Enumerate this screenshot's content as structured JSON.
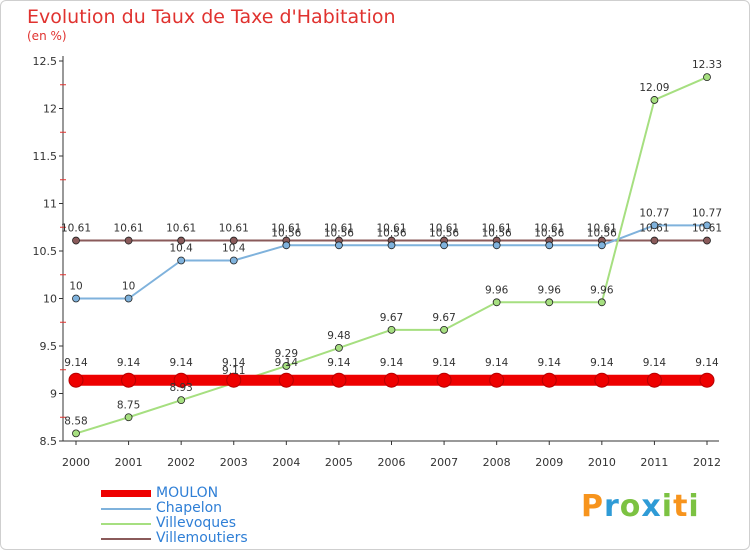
{
  "header": {
    "title": "Evolution du Taux de Taxe d'Habitation",
    "subtitle": "(en %)"
  },
  "logo": {
    "text": "Proxiti",
    "letters": [
      "P",
      "r",
      "o",
      "x",
      "i",
      "t",
      "i"
    ],
    "colors": [
      "#f7941d",
      "#2f9bd6",
      "#7cc242",
      "#2f9bd6",
      "#7cc242",
      "#f7941d",
      "#7cc242"
    ]
  },
  "chart_data": {
    "type": "line",
    "title": "Evolution du Taux de Taxe d'Habitation",
    "subtitle": "(en %)",
    "x": [
      "2000",
      "2001",
      "2002",
      "2003",
      "2004",
      "2005",
      "2006",
      "2007",
      "2008",
      "2009",
      "2010",
      "2011",
      "2012"
    ],
    "yticks": [
      "8.5",
      "9",
      "9.5",
      "10",
      "10.5",
      "11",
      "11.5",
      "12",
      "12.5"
    ],
    "ylim": [
      8.5,
      12.5
    ],
    "grid": false,
    "legend_placement": "bottom-left",
    "series": [
      {
        "name": "MOULON",
        "color": "#ee0000",
        "values": [
          9.14,
          9.14,
          9.14,
          9.14,
          9.14,
          9.14,
          9.14,
          9.14,
          9.14,
          9.14,
          9.14,
          9.14,
          9.14
        ],
        "labels": [
          "9.14",
          "9.14",
          "9.14",
          "9.14",
          "9.14",
          "9.14",
          "9.14",
          "9.14",
          "9.14",
          "9.14",
          "9.14",
          "9.14",
          "9.14"
        ]
      },
      {
        "name": "Chapelon",
        "color": "#7fb2dc",
        "values": [
          10,
          10,
          10.4,
          10.4,
          10.56,
          10.56,
          10.56,
          10.56,
          10.56,
          10.56,
          10.56,
          10.77,
          10.77
        ],
        "labels": [
          "10",
          "10",
          "10.4",
          "10.4",
          "10.56",
          "10.56",
          "10.56",
          "10.56",
          "10.56",
          "10.56",
          "10.56",
          "10.77",
          "10.77"
        ]
      },
      {
        "name": "Villevoques",
        "color": "#a6df80",
        "values": [
          8.58,
          8.75,
          8.93,
          9.11,
          9.29,
          9.48,
          9.67,
          9.67,
          9.96,
          9.96,
          9.96,
          12.09,
          12.33
        ],
        "labels": [
          "8.58",
          "8.75",
          "8.93",
          "9.11",
          "9.29",
          "9.48",
          "9.67",
          "9.67",
          "9.96",
          "9.96",
          "9.96",
          "12.09",
          "12.33"
        ]
      },
      {
        "name": "Villemoutiers",
        "color": "#8a5a5a",
        "values": [
          10.61,
          10.61,
          10.61,
          10.61,
          10.61,
          10.61,
          10.61,
          10.61,
          10.61,
          10.61,
          10.61,
          10.61,
          10.61
        ],
        "labels": [
          "10.61",
          "10.61",
          "10.61",
          "10.61",
          "10.61",
          "10.61",
          "10.61",
          "10.61",
          "10.61",
          "10.61",
          "10.61",
          "10.61",
          "10.61"
        ]
      }
    ]
  }
}
